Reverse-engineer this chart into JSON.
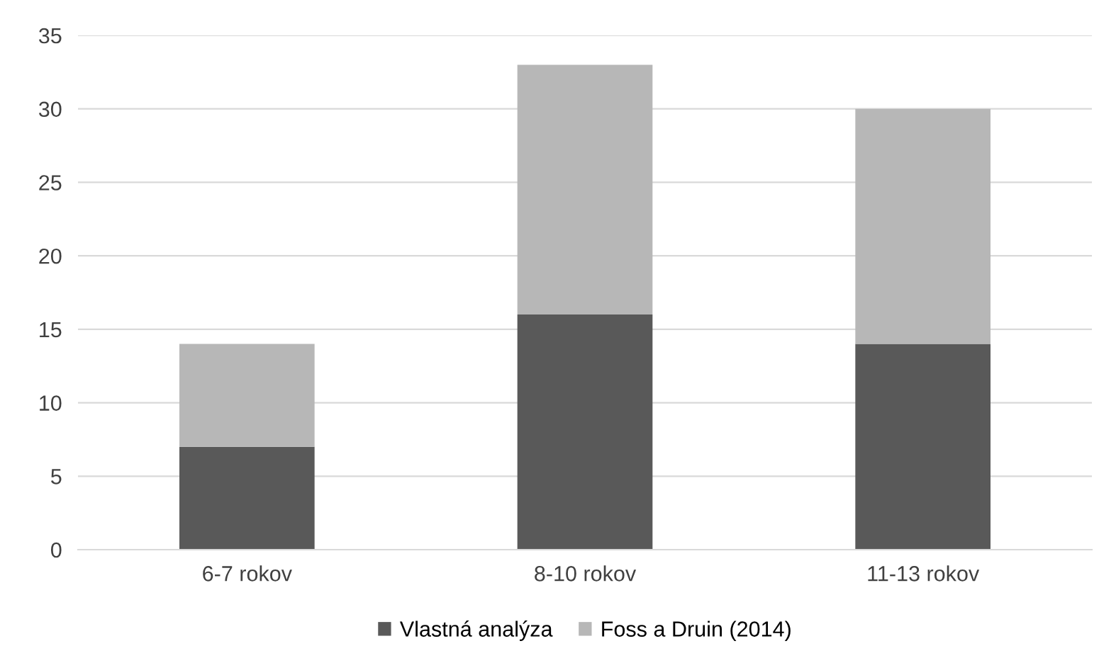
{
  "chart_data": {
    "type": "bar",
    "stacked": true,
    "categories": [
      "6-7 rokov",
      "8-10 rokov",
      "11-13 rokov"
    ],
    "series": [
      {
        "name": "Vlastná analýza",
        "color": "#595959",
        "values": [
          7,
          16,
          14
        ]
      },
      {
        "name": "Foss a Druin (2014)",
        "color": "#b7b7b7",
        "values": [
          7,
          17,
          16
        ]
      }
    ],
    "ylim": [
      0,
      35
    ],
    "yticks": [
      0,
      5,
      10,
      15,
      20,
      25,
      30,
      35
    ],
    "grid": "y",
    "legend": "bottom"
  }
}
